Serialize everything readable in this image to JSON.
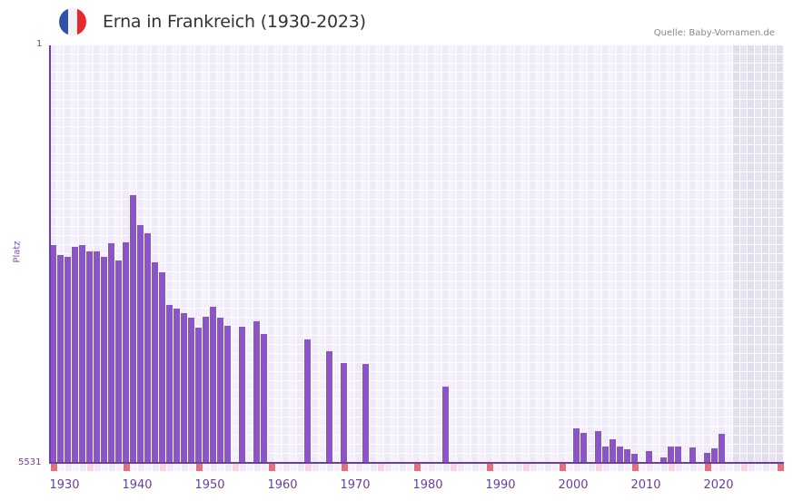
{
  "header": {
    "title": "Erna in Frankreich (1930-2023)",
    "source": "Quelle: Baby-Vornamen.de",
    "flag_icon": "france-flag-icon",
    "flag_colors": [
      "#2f52a6",
      "#f2f2f4",
      "#e8282e"
    ]
  },
  "colors": {
    "bar": "#8b55c8",
    "axis": "#6a3fa0",
    "cell_a": "#efeaf9",
    "cell_b": "#f4f1fc",
    "shade_a": "#e2ddee",
    "shade_b": "#e7e3f0",
    "marker_decade": "#e0707a",
    "marker_half": "#f5d6df",
    "marker_other_a": "#efeaf9",
    "marker_other_b": "#f4f1fc"
  },
  "chart_data": {
    "type": "bar",
    "title": "Erna in Frankreich (1930-2023)",
    "xlabel": "",
    "ylabel": "Platz",
    "y_axis_inverted": true,
    "ylim": [
      5531,
      1
    ],
    "y_ticks": [
      "1",
      "5531"
    ],
    "x_ticks": [
      "1930",
      "1940",
      "1950",
      "1960",
      "1970",
      "1980",
      "1990",
      "2000",
      "2010",
      "2020"
    ],
    "x_range": [
      1930,
      2030
    ],
    "shaded_from_year": 2024,
    "grid": true,
    "series": [
      {
        "name": "Platz",
        "points": [
          {
            "year": 1930,
            "rank": 2646
          },
          {
            "year": 1931,
            "rank": 2778
          },
          {
            "year": 1932,
            "rank": 2802
          },
          {
            "year": 1933,
            "rank": 2670
          },
          {
            "year": 1934,
            "rank": 2646
          },
          {
            "year": 1935,
            "rank": 2730
          },
          {
            "year": 1936,
            "rank": 2730
          },
          {
            "year": 1937,
            "rank": 2802
          },
          {
            "year": 1938,
            "rank": 2622
          },
          {
            "year": 1939,
            "rank": 2850
          },
          {
            "year": 1940,
            "rank": 2610
          },
          {
            "year": 1941,
            "rank": 1985
          },
          {
            "year": 1942,
            "rank": 2381
          },
          {
            "year": 1943,
            "rank": 2490
          },
          {
            "year": 1944,
            "rank": 2874
          },
          {
            "year": 1945,
            "rank": 3006
          },
          {
            "year": 1946,
            "rank": 3439
          },
          {
            "year": 1947,
            "rank": 3487
          },
          {
            "year": 1948,
            "rank": 3547
          },
          {
            "year": 1949,
            "rank": 3608
          },
          {
            "year": 1950,
            "rank": 3740
          },
          {
            "year": 1951,
            "rank": 3596
          },
          {
            "year": 1952,
            "rank": 3463
          },
          {
            "year": 1953,
            "rank": 3608
          },
          {
            "year": 1954,
            "rank": 3716
          },
          {
            "year": 1956,
            "rank": 3728
          },
          {
            "year": 1958,
            "rank": 3656
          },
          {
            "year": 1959,
            "rank": 3824
          },
          {
            "year": 1965,
            "rank": 3896
          },
          {
            "year": 1968,
            "rank": 4052
          },
          {
            "year": 1970,
            "rank": 4209
          },
          {
            "year": 1973,
            "rank": 4221
          },
          {
            "year": 1984,
            "rank": 4521
          },
          {
            "year": 2002,
            "rank": 5074
          },
          {
            "year": 2003,
            "rank": 5134
          },
          {
            "year": 2005,
            "rank": 5110
          },
          {
            "year": 2006,
            "rank": 5315
          },
          {
            "year": 2007,
            "rank": 5218
          },
          {
            "year": 2008,
            "rank": 5315
          },
          {
            "year": 2009,
            "rank": 5351
          },
          {
            "year": 2010,
            "rank": 5411
          },
          {
            "year": 2012,
            "rank": 5375
          },
          {
            "year": 2014,
            "rank": 5459
          },
          {
            "year": 2015,
            "rank": 5315
          },
          {
            "year": 2016,
            "rank": 5315
          },
          {
            "year": 2018,
            "rank": 5327
          },
          {
            "year": 2020,
            "rank": 5399
          },
          {
            "year": 2021,
            "rank": 5339
          },
          {
            "year": 2022,
            "rank": 5146
          }
        ]
      }
    ]
  }
}
